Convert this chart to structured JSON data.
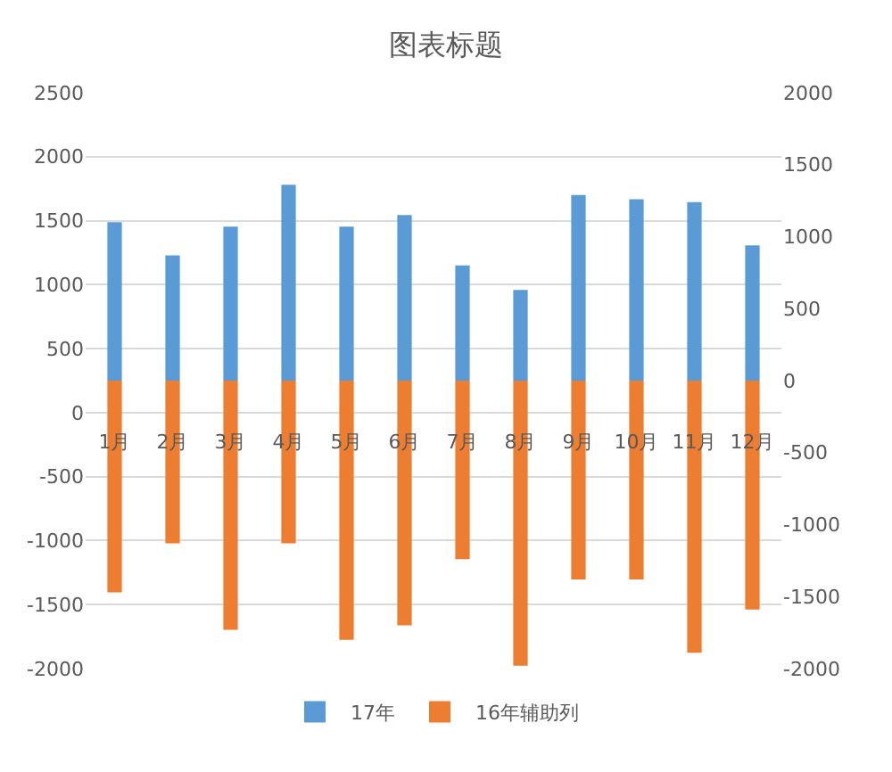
{
  "chart_data": {
    "type": "bar",
    "title": "图表标题",
    "categories": [
      "1月",
      "2月",
      "3月",
      "4月",
      "5月",
      "6月",
      "7月",
      "8月",
      "9月",
      "10月",
      "11月",
      "12月"
    ],
    "series": [
      {
        "name": "17年",
        "color": "#5b9bd5",
        "axis": "y2",
        "values": [
          1100,
          870,
          1070,
          1360,
          1070,
          1150,
          800,
          630,
          1290,
          1260,
          1240,
          940
        ]
      },
      {
        "name": "16年辅助列",
        "color": "#ed7d31",
        "axis": "y2",
        "values": [
          -1470,
          -1130,
          -1730,
          -1130,
          -1800,
          -1700,
          -1240,
          -1980,
          -1380,
          -1380,
          -1890,
          -1590
        ]
      }
    ],
    "ylim": [
      -2000,
      2500
    ],
    "yticks": [
      -2000,
      -1500,
      -1000,
      -500,
      0,
      500,
      1000,
      1500,
      2000,
      2500
    ],
    "y2lim": [
      -2000,
      2000
    ],
    "y2ticks": [
      -2000,
      -1500,
      -1000,
      -500,
      0,
      500,
      1000,
      1500,
      2000
    ],
    "stacked": true,
    "grid": "y",
    "legend": "bottom"
  }
}
